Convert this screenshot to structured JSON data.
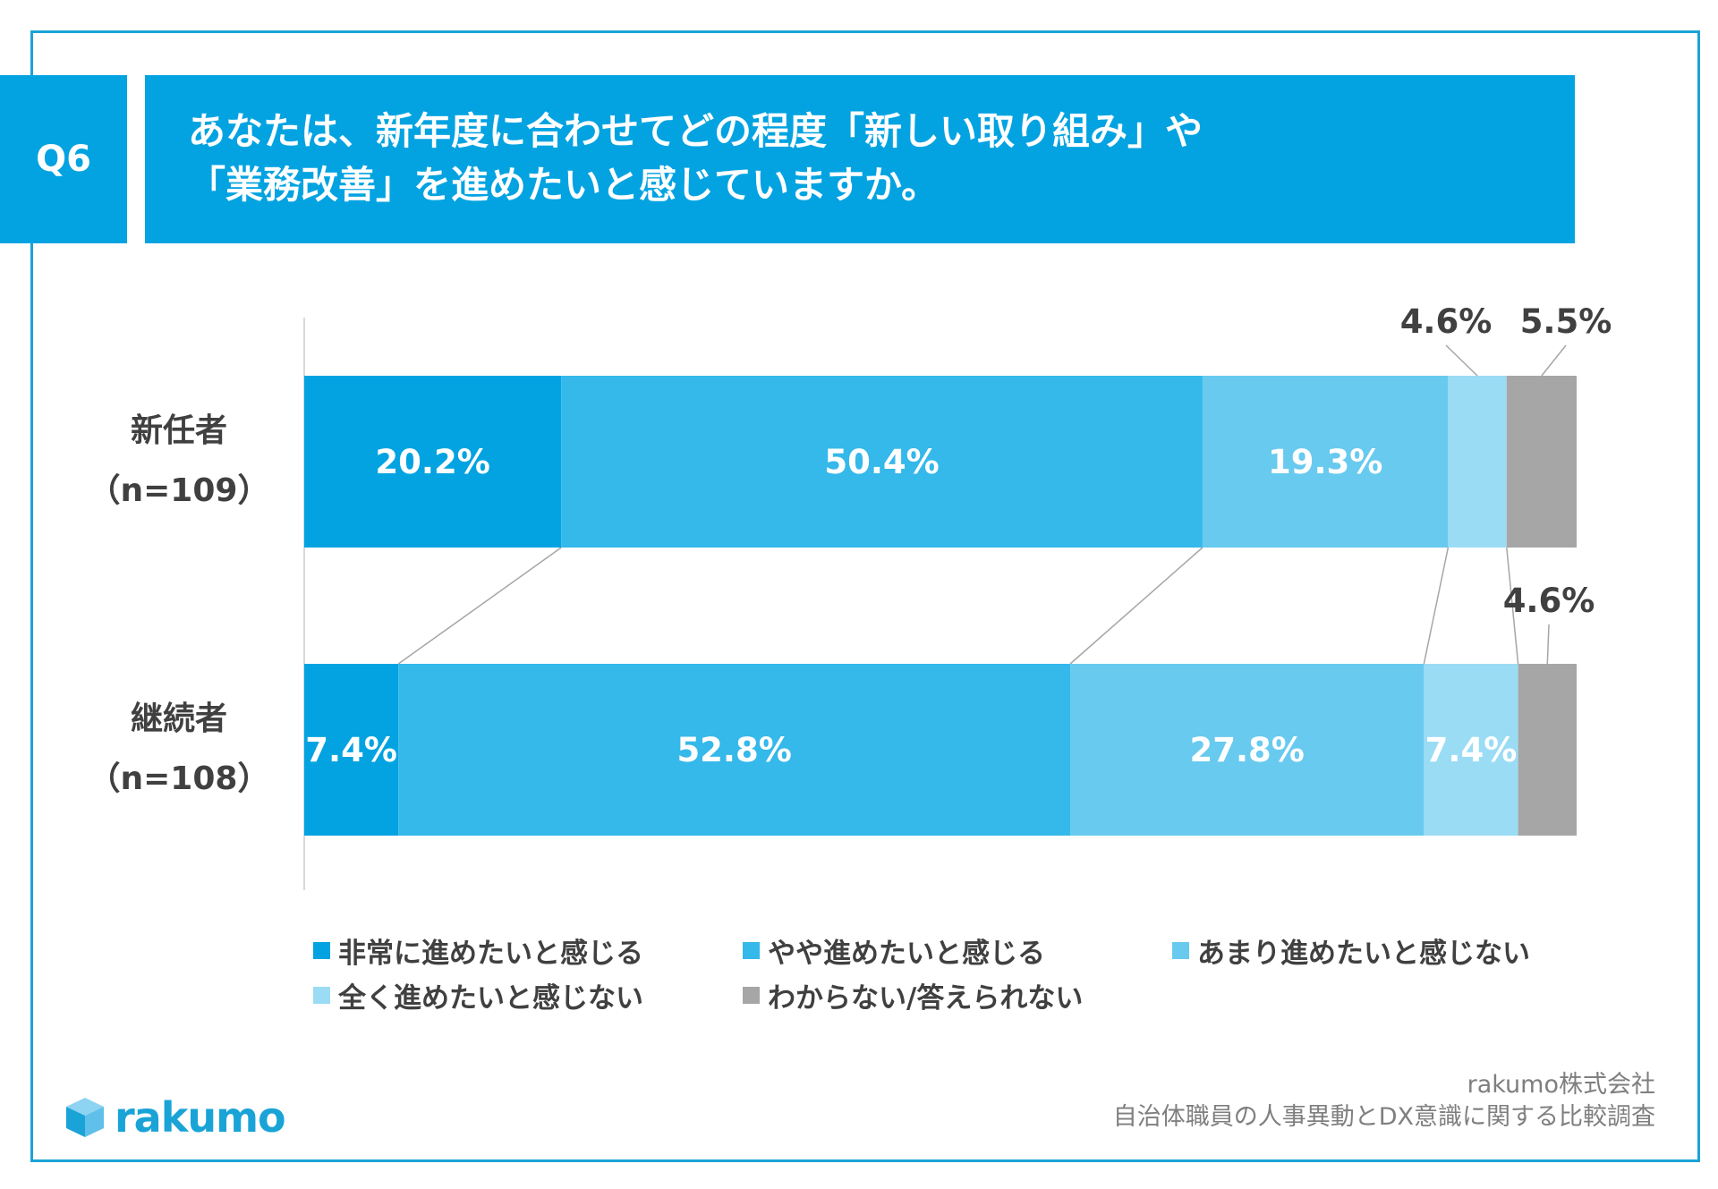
{
  "question": {
    "number": "Q6",
    "title_line1": "あなたは、新年度に合わせてどの程度「新しい取り組み」や",
    "title_line2": "「業務改善」を進めたいと感じていますか。"
  },
  "chart_data": {
    "type": "bar",
    "orientation": "horizontal-stacked-100",
    "categories": [
      "新任者（n=109）",
      "継続者（n=108）"
    ],
    "category_labels": [
      {
        "line1": "新任者",
        "line2": "（n=109）"
      },
      {
        "line1": "継続者",
        "line2": "（n=108）"
      }
    ],
    "series": [
      {
        "name": "非常に進めたいと感じる",
        "color": "#03a3e1",
        "values": [
          20.2,
          7.4
        ]
      },
      {
        "name": "やや進めたいと感じる",
        "color": "#35b8ea",
        "values": [
          50.4,
          52.8
        ]
      },
      {
        "name": "あまり進めたいと感じない",
        "color": "#68caef",
        "values": [
          19.3,
          27.8
        ]
      },
      {
        "name": "全く進めたいと感じない",
        "color": "#9bdcf5",
        "values": [
          4.6,
          7.4
        ]
      },
      {
        "name": "わからない/答えられない",
        "color": "#a6a6a6",
        "values": [
          5.5,
          4.6
        ]
      }
    ],
    "data_labels": [
      [
        "20.2%",
        "50.4%",
        "19.3%",
        "4.6%",
        "5.5%"
      ],
      [
        "7.4%",
        "52.8%",
        "27.8%",
        "7.4%",
        "4.6%"
      ]
    ],
    "outside_labels": [
      [
        false,
        false,
        false,
        true,
        true
      ],
      [
        false,
        false,
        false,
        false,
        true
      ]
    ],
    "xlim": [
      0,
      100
    ],
    "legend_position": "bottom"
  },
  "footer": {
    "company": "rakumo株式会社",
    "survey": "自治体職員の人事異動とDX意識に関する比較調査",
    "logo_text": "rakumo"
  },
  "colors": {
    "accent": "#03a3e1",
    "frame": "#1aa3d6",
    "text": "#404040"
  }
}
